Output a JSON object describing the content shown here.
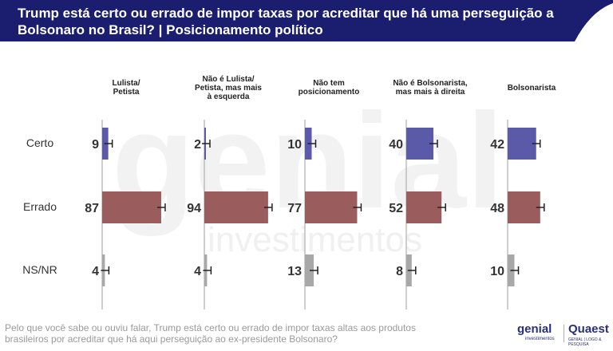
{
  "header": {
    "title": "Trump está certo ou errado de impor taxas por acreditar que há uma perseguição a Bolsonaro no Brasil? | Posicionamento político",
    "color": "#1b1e6e"
  },
  "chart_data": {
    "type": "bar",
    "orientation": "horizontal",
    "groups": [
      {
        "label_lines": [
          "Lulista/",
          "Petista"
        ],
        "values": [
          9,
          87,
          4
        ]
      },
      {
        "label_lines": [
          "Não é Lulista/",
          "Petista, mas mais",
          "à esquerda"
        ],
        "values": [
          2,
          94,
          4
        ]
      },
      {
        "label_lines": [
          "Não tem",
          "posicionamento"
        ],
        "values": [
          10,
          77,
          13
        ]
      },
      {
        "label_lines": [
          "Não é Bolsonarista,",
          "mas mais à direita"
        ],
        "values": [
          40,
          52,
          8
        ]
      },
      {
        "label_lines": [
          "Bolsonarista"
        ],
        "values": [
          42,
          48,
          10
        ]
      }
    ],
    "categories": [
      "Certo",
      "Errado",
      "NS/NR"
    ],
    "category_colors": [
      "#5a5aa8",
      "#9a5c5c",
      "#a8a8a8"
    ],
    "error_bars": true,
    "grid": false
  },
  "footer": {
    "note": "Pelo que você sabe ou ouviu falar, Trump está certo ou errado de impor taxas altas aos produtos brasileiros por acreditar que há aqui perseguição ao ex-presidente Bolsonaro?",
    "logo_genial": "genial",
    "logo_genial_sub": "investimentos",
    "logo_quaest": "Quaest",
    "logo_quaest_sub": "GENIAL | LOGO & PESQUISA"
  },
  "watermark": {
    "word": "genial",
    "sub": "investimentos"
  }
}
